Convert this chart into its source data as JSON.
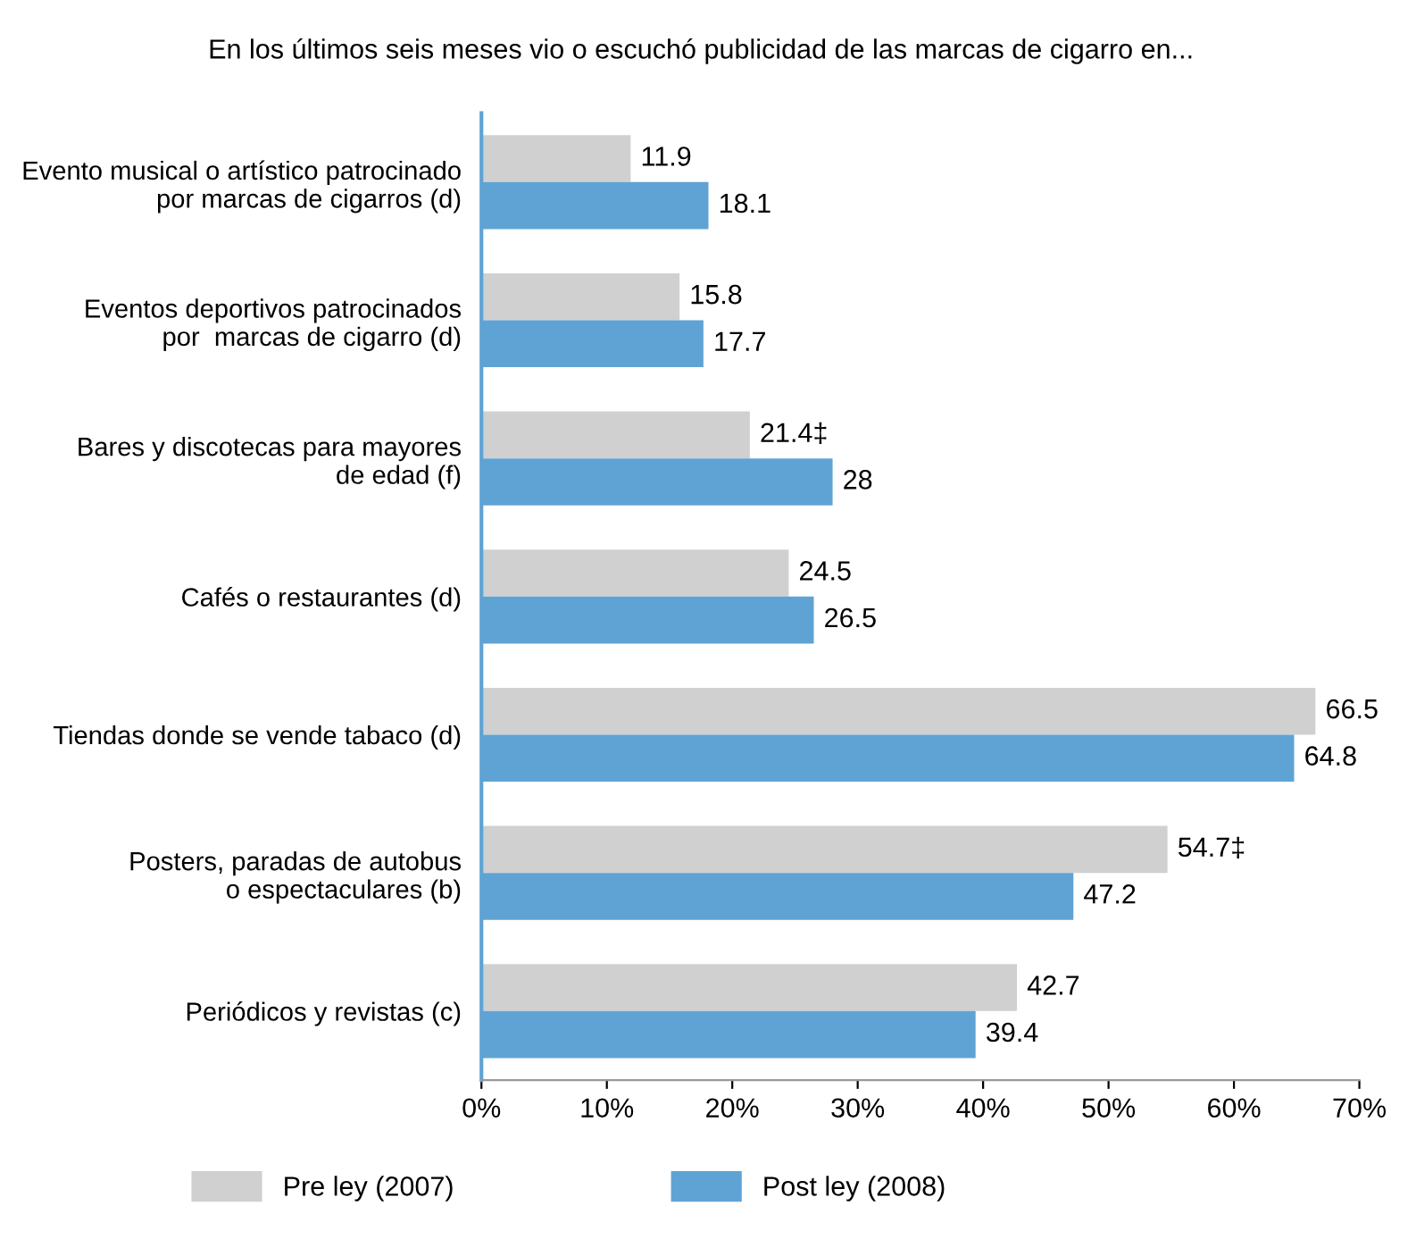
{
  "chart_data": {
    "type": "bar",
    "orientation": "horizontal",
    "title": "En los últimos seis meses vio o escuchó publicidad de las marcas de cigarro en...",
    "categories": [
      "Evento musical o artístico patrocinado\npor marcas de cigarros (d)",
      "Eventos deportivos patrocinados\npor  marcas de cigarro (d)",
      "Bares y discotecas para mayores\nde edad (f)",
      "Cafés o restaurantes (d)",
      "Tiendas donde se vende tabaco (d)",
      "Posters, paradas de autobus\no espectaculares (b)",
      "Periódicos y revistas (c)"
    ],
    "series": [
      {
        "name": "Pre ley (2007)",
        "color": "#d0d0d0",
        "values": [
          11.9,
          15.8,
          21.4,
          24.5,
          66.5,
          54.7,
          42.7
        ],
        "value_labels": [
          "11.9",
          "15.8",
          "21.4‡",
          "24.5",
          "66.5",
          "54.7‡",
          "42.7"
        ]
      },
      {
        "name": "Post ley (2008)",
        "color": "#5fa3d5",
        "values": [
          18.1,
          17.7,
          28,
          26.5,
          64.8,
          47.2,
          39.4
        ],
        "value_labels": [
          "18.1",
          "17.7",
          "28",
          "26.5",
          "64.8",
          "47.2",
          "39.4"
        ]
      }
    ],
    "xlim": [
      0,
      70
    ],
    "xticks": [
      {
        "value": 0,
        "label": "0%"
      },
      {
        "value": 10,
        "label": "10%"
      },
      {
        "value": 20,
        "label": "20%"
      },
      {
        "value": 30,
        "label": "30%"
      },
      {
        "value": 40,
        "label": "40%"
      },
      {
        "value": 50,
        "label": "50%"
      },
      {
        "value": 60,
        "label": "60%"
      },
      {
        "value": 70,
        "label": "70%"
      }
    ],
    "grid": false,
    "legend": "bottom"
  }
}
